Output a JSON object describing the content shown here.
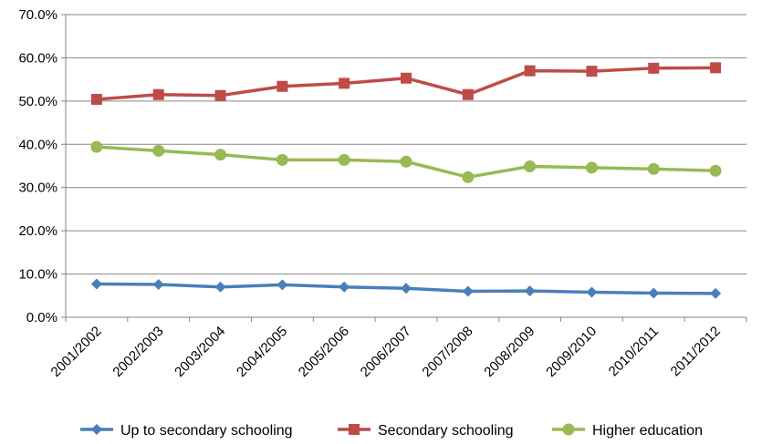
{
  "chart_data": {
    "type": "line",
    "title": "",
    "xlabel": "",
    "ylabel": "",
    "categories": [
      "2001/2002",
      "2002/2003",
      "2003/2004",
      "2004/2005",
      "2005/2006",
      "2006/2007",
      "2007/2008",
      "2008/2009",
      "2009/2010",
      "2010/2011",
      "2011/2012"
    ],
    "ylim": [
      0,
      70
    ],
    "yticks": [
      "0.0%",
      "10.0%",
      "20.0%",
      "30.0%",
      "40.0%",
      "50.0%",
      "60.0%",
      "70.0%"
    ],
    "grid": true,
    "legend_position": "bottom",
    "series": [
      {
        "name": "Up to secondary schooling",
        "color": "#4a7ebb",
        "marker": "diamond",
        "values": [
          7.7,
          7.6,
          7.0,
          7.5,
          7.0,
          6.7,
          6.0,
          6.1,
          5.8,
          5.6,
          5.5
        ]
      },
      {
        "name": "Secondary schooling",
        "color": "#be4b48",
        "marker": "square",
        "values": [
          50.4,
          51.5,
          51.3,
          53.4,
          54.1,
          55.3,
          51.5,
          57.0,
          56.9,
          57.6,
          57.7
        ]
      },
      {
        "name": "Higher education",
        "color": "#98b954",
        "marker": "circle",
        "values": [
          39.4,
          38.5,
          37.6,
          36.4,
          36.4,
          36.0,
          32.4,
          34.9,
          34.6,
          34.3,
          33.9
        ]
      }
    ]
  }
}
